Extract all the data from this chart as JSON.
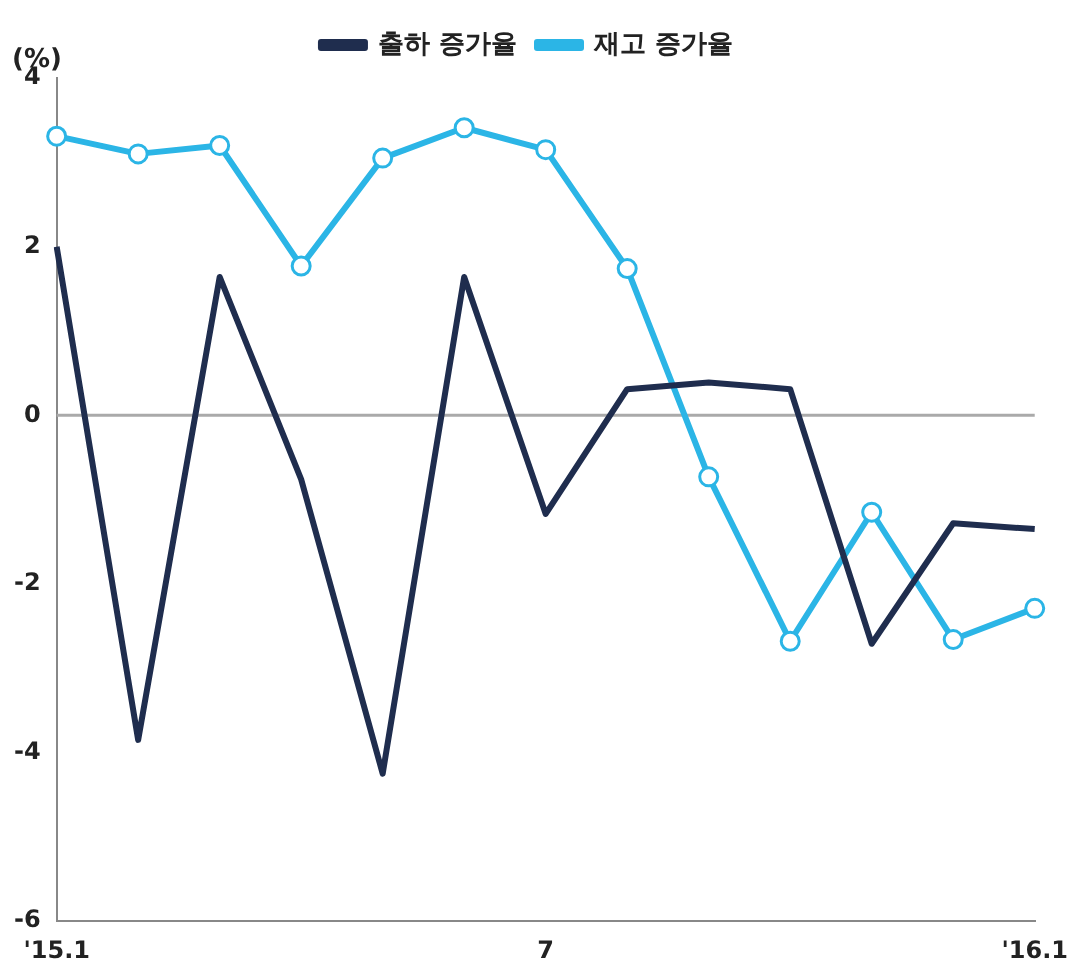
{
  "chart_data": {
    "type": "line",
    "ylabel": "(%)",
    "categories": [
      "'15.1",
      null,
      null,
      null,
      null,
      null,
      "7",
      null,
      null,
      null,
      null,
      null,
      "'16.1"
    ],
    "series": [
      {
        "name": "출하 증가율",
        "color": "#1f2d4e",
        "marker": "none",
        "values": [
          2.0,
          -3.85,
          1.64,
          -0.76,
          -4.25,
          1.64,
          -1.17,
          0.31,
          0.39,
          0.31,
          -2.71,
          -1.28,
          -1.35
        ]
      },
      {
        "name": "재고 증가율",
        "color": "#2bb5e6",
        "marker": "circle",
        "values": [
          3.31,
          3.1,
          3.2,
          1.77,
          3.05,
          3.41,
          3.15,
          1.74,
          -0.73,
          -2.68,
          -1.15,
          -2.66,
          -2.29
        ]
      }
    ],
    "ylim": [
      -6,
      4
    ],
    "yticks": [
      -6,
      -4,
      -2,
      0,
      2,
      4
    ],
    "ref_lines": [
      {
        "axis": "y",
        "value": 0
      }
    ],
    "grid": false,
    "legend": "top",
    "line_style": "solid"
  }
}
